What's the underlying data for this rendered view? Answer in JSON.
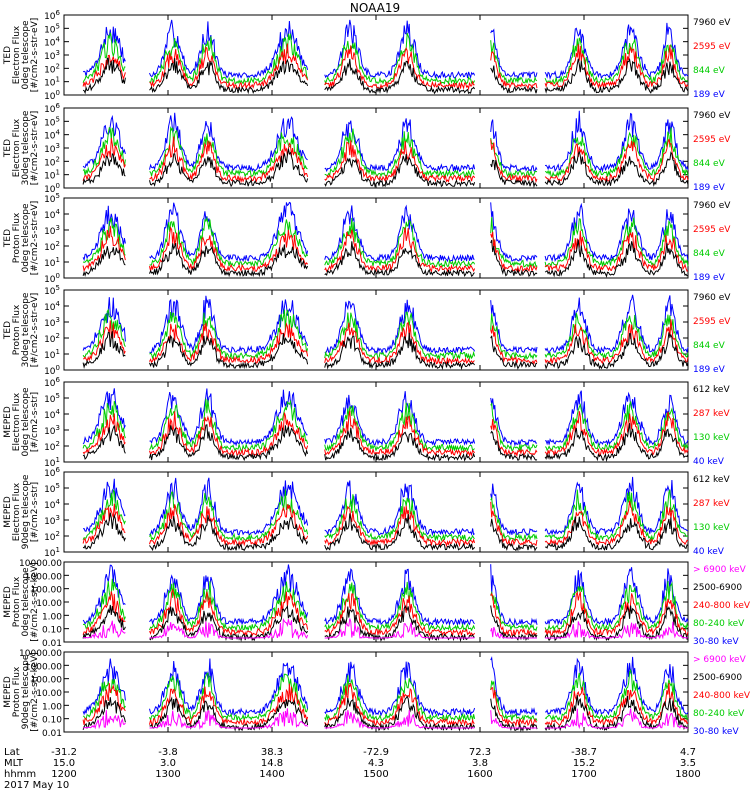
{
  "title": "NOAA19",
  "colors": {
    "blue": "#0000ff",
    "red": "#ff0000",
    "green": "#00cc00",
    "black": "#000000",
    "magenta": "#ff00ff"
  },
  "chart_data": [
    {
      "type": "line",
      "scale": "log",
      "ylim_exp": [
        0,
        6
      ],
      "ylabel": [
        "TED",
        "Electron Flux",
        "0deg telescope",
        "[#/cm2-s-str-eV]"
      ],
      "legend": [
        {
          "label": "7960 eV",
          "color": "black"
        },
        {
          "label": "2595 eV",
          "color": "red"
        },
        {
          "label": "844 eV",
          "color": "green"
        },
        {
          "label": "189 eV",
          "color": "blue"
        }
      ]
    },
    {
      "type": "line",
      "scale": "log",
      "ylim_exp": [
        0,
        6
      ],
      "ylabel": [
        "TED",
        "Electron Flux",
        "30deg telescope",
        "[#/cm2-s-str-eV]"
      ],
      "legend": [
        {
          "label": "7960 eV",
          "color": "black"
        },
        {
          "label": "2595 eV",
          "color": "red"
        },
        {
          "label": "844 eV",
          "color": "green"
        },
        {
          "label": "189 eV",
          "color": "blue"
        }
      ]
    },
    {
      "type": "line",
      "scale": "log",
      "ylim_exp": [
        0,
        5
      ],
      "ylabel": [
        "TED",
        "Proton Flux",
        "0deg telescope",
        "[#/cm2-s-str-eV]"
      ],
      "legend": [
        {
          "label": "7960 eV",
          "color": "black"
        },
        {
          "label": "2595 eV",
          "color": "red"
        },
        {
          "label": "844 eV",
          "color": "green"
        },
        {
          "label": "189 eV",
          "color": "blue"
        }
      ]
    },
    {
      "type": "line",
      "scale": "log",
      "ylim_exp": [
        0,
        5
      ],
      "ylabel": [
        "TED",
        "Proton Flux",
        "30deg telescope",
        "[#/cm2-s-str-eV]"
      ],
      "legend": [
        {
          "label": "7960 eV",
          "color": "black"
        },
        {
          "label": "2595 eV",
          "color": "red"
        },
        {
          "label": "844 eV",
          "color": "green"
        },
        {
          "label": "189 eV",
          "color": "blue"
        }
      ]
    },
    {
      "type": "line",
      "scale": "log",
      "ylim_exp": [
        1,
        6
      ],
      "ylabel": [
        "MEPED",
        "Electron Flux",
        "0deg telescope",
        "[#/cm2-s-str]"
      ],
      "legend": [
        {
          "label": "612 keV",
          "color": "black"
        },
        {
          "label": "287 keV",
          "color": "red"
        },
        {
          "label": "130 keV",
          "color": "green"
        },
        {
          "label": "40 keV",
          "color": "blue"
        }
      ]
    },
    {
      "type": "line",
      "scale": "log",
      "ylim_exp": [
        1,
        6
      ],
      "ylabel": [
        "MEPED",
        "Electron Flux",
        "90deg telescope",
        "[#/cm2-s-str]"
      ],
      "legend": [
        {
          "label": "612 keV",
          "color": "black"
        },
        {
          "label": "287 keV",
          "color": "red"
        },
        {
          "label": "130 keV",
          "color": "green"
        },
        {
          "label": "40 keV",
          "color": "blue"
        }
      ]
    },
    {
      "type": "line",
      "scale": "log",
      "ylabel": [
        "MEPED",
        "Proton Flux",
        "0deg telescope",
        "[#/cm2-s-str-keV]"
      ],
      "yticks": [
        "10000.00",
        "1000.00",
        "100.00",
        "10.00",
        "1.00",
        "0.10",
        "0.01"
      ],
      "legend": [
        {
          "label": "> 6900 keV",
          "color": "magenta"
        },
        {
          "label": "2500-6900",
          "color": "black"
        },
        {
          "label": "240-800 keV",
          "color": "red"
        },
        {
          "label": "80-240 keV",
          "color": "green"
        },
        {
          "label": "30-80 keV",
          "color": "blue"
        }
      ]
    },
    {
      "type": "line",
      "scale": "log",
      "ylabel": [
        "MEPED",
        "Proton Flux",
        "90deg telescope",
        "[#/cm2-s-str-keV]"
      ],
      "yticks": [
        "10000.00",
        "1000.00",
        "100.00",
        "10.00",
        "1.00",
        "0.10",
        "0.01"
      ],
      "legend": [
        {
          "label": "> 6900 keV",
          "color": "magenta"
        },
        {
          "label": "2500-6900",
          "color": "black"
        },
        {
          "label": "240-800 keV",
          "color": "red"
        },
        {
          "label": "80-240 keV",
          "color": "green"
        },
        {
          "label": "30-80 keV",
          "color": "blue"
        }
      ]
    }
  ],
  "xaxis": {
    "row_labels": [
      "Lat",
      "MLT",
      "hhmm",
      "2017 May 10"
    ],
    "ticks": [
      {
        "lat": "-31.2",
        "mlt": "15.0",
        "hhmm": "1200"
      },
      {
        "lat": "-3.8",
        "mlt": "3.0",
        "hhmm": "1300"
      },
      {
        "lat": "38.3",
        "mlt": "14.8",
        "hhmm": "1400"
      },
      {
        "lat": "-72.9",
        "mlt": "4.3",
        "hhmm": "1500"
      },
      {
        "lat": "72.3",
        "mlt": "3.8",
        "hhmm": "1600"
      },
      {
        "lat": "-38.7",
        "mlt": "15.2",
        "hhmm": "1700"
      },
      {
        "lat": "4.7",
        "mlt": "3.5",
        "hhmm": "1800"
      }
    ]
  }
}
